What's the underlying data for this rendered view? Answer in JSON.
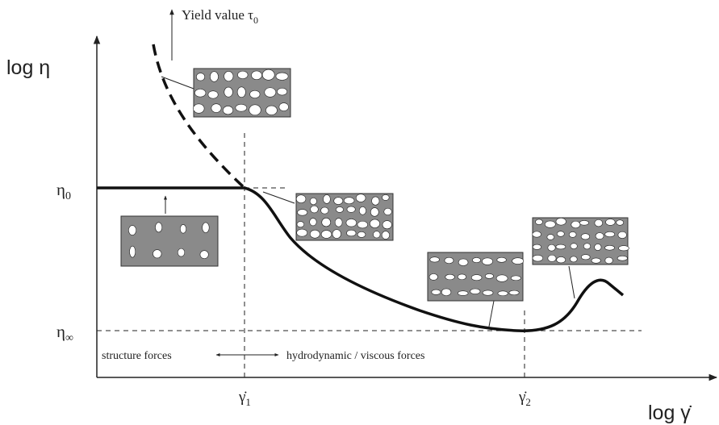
{
  "diagram": {
    "annotation": {
      "base": "Yield value τ",
      "sub": "0"
    },
    "y_axis_label": "log η",
    "x_axis_label": "log γ̇",
    "eta_zero": {
      "base": "η",
      "sub": "0"
    },
    "eta_infinity": {
      "base": "η",
      "sub": "∞"
    },
    "gamma_one": {
      "base": "γ̇",
      "sub": "1"
    },
    "gamma_two": {
      "base": "γ̇",
      "sub": "2"
    },
    "region_left": "structure forces",
    "region_right": "hydrodynamic / viscous forces"
  }
}
